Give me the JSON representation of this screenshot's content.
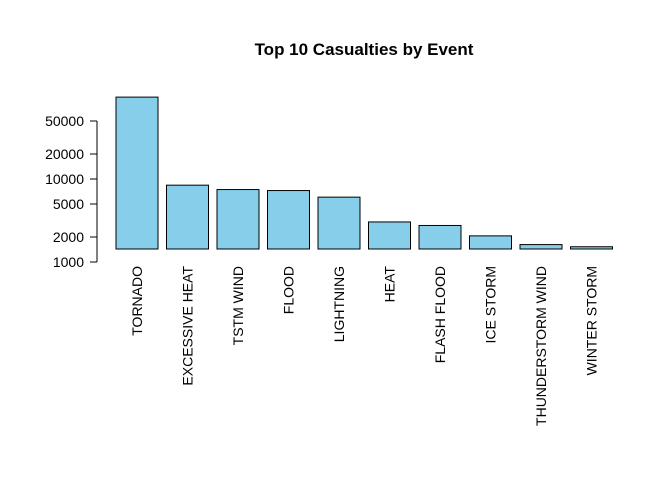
{
  "chart_data": {
    "type": "bar",
    "title": "Top 10 Casualties by Event",
    "xlabel": "",
    "ylabel": "",
    "y_scale": "log",
    "ylim": [
      1000,
      100000
    ],
    "y_ticks": [
      1000,
      2000,
      5000,
      10000,
      20000,
      50000
    ],
    "y_tick_labels": [
      "1000",
      "2000",
      "5000",
      "10000",
      "20000",
      "50000"
    ],
    "categories": [
      "TORNADO",
      "EXCESSIVE HEAT",
      "TSTM WIND",
      "FLOOD",
      "LIGHTNING",
      "HEAT",
      "FLASH FLOOD",
      "ICE STORM",
      "THUNDERSTORM WIND",
      "WINTER STORM"
    ],
    "values": [
      96979,
      8428,
      7461,
      7259,
      6046,
      3037,
      2755,
      2064,
      1621,
      1527
    ],
    "bar_color": "#87CEEB",
    "grid": false,
    "legend": "none"
  }
}
